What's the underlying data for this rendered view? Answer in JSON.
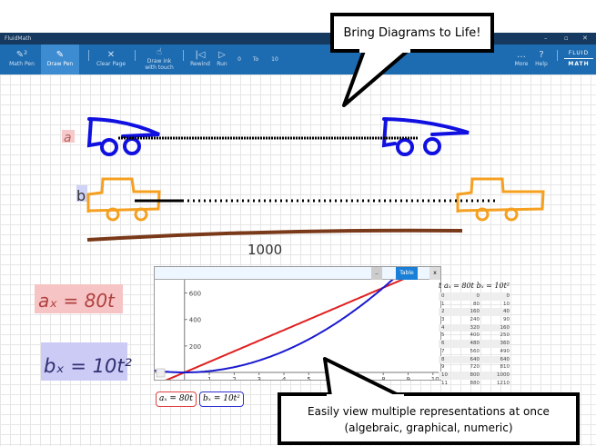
{
  "window": {
    "title": "FluidMath",
    "minimize": "–",
    "maximize": "▫",
    "close": "✕"
  },
  "toolbar": {
    "math_pen": "Math Pen",
    "draw_pen": "Draw Pen",
    "clear_page": "Clear Page",
    "draw_ink": "Draw ink with touch",
    "rewind": "Rewind",
    "run": "Run",
    "from": "0",
    "to_label": "To",
    "to": "10",
    "more": "More",
    "help": "Help",
    "logo_top": "FLUID",
    "logo_bottom": "MATH"
  },
  "callouts": {
    "top": "Bring Diagrams to Life!",
    "bottom_line1": "Easily view multiple representations at once",
    "bottom_line2": "(algebraic, graphical, numeric)"
  },
  "sketch": {
    "label_a": "a",
    "label_b": "b",
    "distance": "1000",
    "eq_a": "aₓ = 80t",
    "eq_b": "bₓ = 10t²"
  },
  "graph": {
    "table_button": "Table",
    "close_button": "x",
    "minimize_button": "..",
    "legend_a": "aₓ = 80t",
    "legend_b": "bₓ = 10t²"
  },
  "chart_data": {
    "type": "line",
    "x_ticks": [
      1,
      2,
      3,
      4,
      5,
      6,
      7,
      8,
      9,
      10
    ],
    "y_ticks": [
      200,
      400,
      600
    ],
    "xlim": [
      -1.2,
      10.3
    ],
    "ylim": [
      0,
      700
    ],
    "series": [
      {
        "name": "aₓ = 80t",
        "color": "#e02020",
        "formula": "80t"
      },
      {
        "name": "bₓ = 10t²",
        "color": "#1a1ad0",
        "formula": "10t²"
      }
    ]
  },
  "table": {
    "headers": [
      "t",
      "aₓ = 80t",
      "bₓ = 10t²"
    ],
    "rows": [
      [
        "0",
        "0",
        "0"
      ],
      [
        "1",
        "80",
        "10"
      ],
      [
        "2",
        "160",
        "40"
      ],
      [
        "3",
        "240",
        "90"
      ],
      [
        "4",
        "320",
        "160"
      ],
      [
        "5",
        "400",
        "250"
      ],
      [
        "6",
        "480",
        "360"
      ],
      [
        "7",
        "560",
        "490"
      ],
      [
        "8",
        "640",
        "640"
      ],
      [
        "9",
        "720",
        "810"
      ],
      [
        "10",
        "800",
        "1000"
      ],
      [
        "11",
        "880",
        "1210"
      ]
    ]
  }
}
